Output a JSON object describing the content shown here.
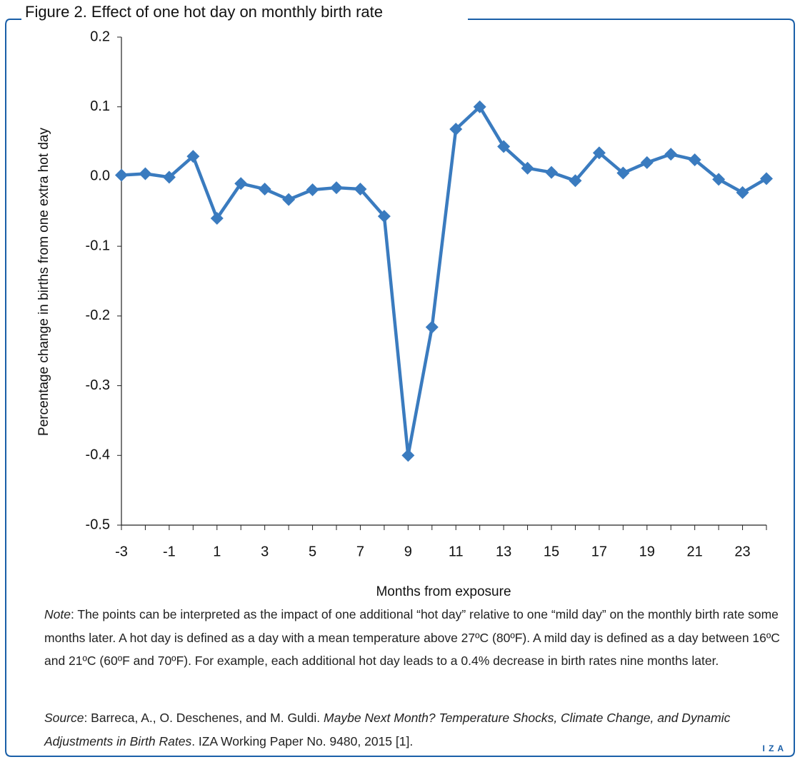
{
  "chart_data": {
    "type": "line",
    "title": "Figure 2. Effect of one hot day on monthly birth rate",
    "x_label": "Months from exposure",
    "y_label": "Percentage change in births from one extra hot day",
    "x": [
      -3,
      -2,
      -1,
      0,
      1,
      2,
      3,
      4,
      5,
      6,
      7,
      8,
      9,
      10,
      11,
      12,
      13,
      14,
      15,
      16,
      17,
      18,
      19,
      20,
      21,
      22,
      23,
      24
    ],
    "series": [
      {
        "color": "#3a7bbf",
        "values": [
          0.002,
          0.004,
          -0.001,
          0.029,
          -0.06,
          -0.01,
          -0.018,
          -0.033,
          -0.019,
          -0.016,
          -0.018,
          -0.057,
          -0.4,
          -0.216,
          0.068,
          0.1,
          0.043,
          0.012,
          0.006,
          -0.006,
          0.034,
          0.005,
          0.02,
          0.032,
          0.024,
          -0.004,
          -0.023,
          -0.003
        ]
      }
    ],
    "xlim": [
      -3,
      24
    ],
    "xticks": [
      -3,
      -1,
      1,
      3,
      5,
      7,
      9,
      11,
      13,
      15,
      17,
      19,
      21,
      23
    ],
    "ylim": [
      -0.5,
      0.2
    ],
    "yticks": [
      0.2,
      0.1,
      {
        "value": 0,
        "label": "0.0"
      },
      -0.1,
      -0.2,
      -0.3,
      -0.4,
      -0.5
    ],
    "grid": false
  },
  "note": {
    "label": "Note",
    "text": ": The points can be interpreted as the impact of one additional “hot day” relative to one “mild day” on the monthly birth rate some months later. A hot day is defined as a day with a mean temperature above 27ºC (80ºF). A mild day is defined as a day between 16ºC and 21ºC (60ºF and 70ºF). For example, each additional hot day leads to a 0.4% decrease in birth rates nine months later."
  },
  "source": {
    "label": "Source",
    "authors": ": Barreca, A., O. Deschenes, and M. Guldi. ",
    "title": "Maybe Next Month? Temperature Shocks, Climate Change, and Dynamic Adjustments in Birth Rates",
    "rest": ". IZA Working Paper No. 9480, 2015 [1]."
  },
  "logo": "I Z A"
}
